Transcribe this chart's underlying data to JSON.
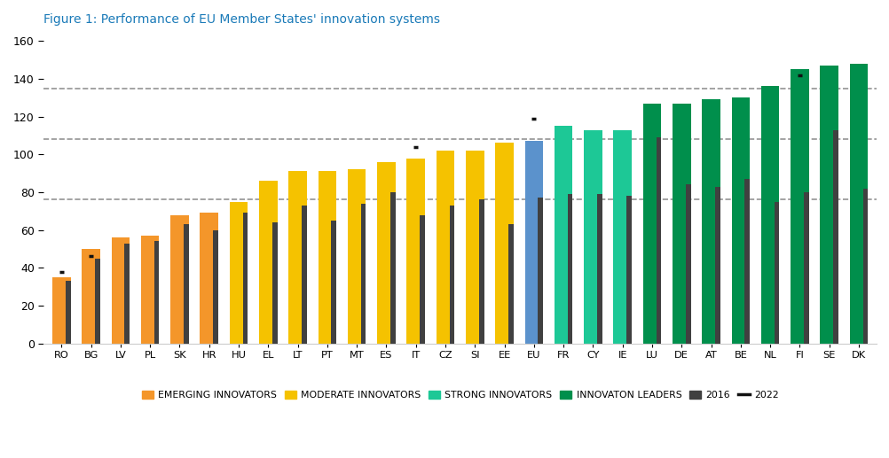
{
  "title": "Figure 1: Performance of EU Member States' innovation systems",
  "title_color": "#1a7ab8",
  "countries": [
    "RO",
    "BG",
    "LV",
    "PL",
    "SK",
    "HR",
    "HU",
    "EL",
    "LT",
    "PT",
    "MT",
    "ES",
    "IT",
    "CZ",
    "SI",
    "EE",
    "EU",
    "FR",
    "CY",
    "IE",
    "LU",
    "DE",
    "AT",
    "BE",
    "NL",
    "FI",
    "SE",
    "DK"
  ],
  "bar_values": [
    35,
    50,
    56,
    57,
    68,
    69,
    75,
    86,
    91,
    91,
    92,
    96,
    98,
    102,
    102,
    106,
    107,
    115,
    113,
    113,
    127,
    127,
    129,
    130,
    136,
    145,
    147,
    148
  ],
  "bar_2016": [
    33,
    45,
    53,
    54,
    63,
    60,
    69,
    64,
    73,
    65,
    74,
    80,
    68,
    73,
    76,
    63,
    77,
    79,
    79,
    78,
    109,
    84,
    83,
    87,
    75,
    80,
    113,
    82
  ],
  "bar_2022": [
    38,
    46,
    null,
    null,
    null,
    null,
    null,
    null,
    null,
    null,
    null,
    null,
    104,
    null,
    null,
    null,
    119,
    null,
    null,
    null,
    null,
    null,
    null,
    null,
    null,
    142,
    null,
    null
  ],
  "categories": {
    "EMERGING INNOVATORS": [
      "RO",
      "BG",
      "LV",
      "PL",
      "SK",
      "HR"
    ],
    "MODERATE INNOVATORS": [
      "HU",
      "EL",
      "LT",
      "PT",
      "MT",
      "ES",
      "IT",
      "CZ",
      "SI",
      "EE"
    ],
    "EU": [
      "EU"
    ],
    "STRONG INNOVATORS": [
      "FR",
      "CY",
      "IE"
    ],
    "INNOVATION LEADERS": [
      "LU",
      "DE",
      "AT",
      "BE",
      "NL",
      "FI",
      "SE",
      "DK"
    ]
  },
  "colors": {
    "EMERGING INNOVATORS": "#F4962A",
    "MODERATE INNOVATORS": "#F5C200",
    "EU": "#5B92CC",
    "STRONG INNOVATORS": "#1DC896",
    "INNOVATION LEADERS": "#008F4C",
    "2016": "#404040",
    "2022": "#111111"
  },
  "dashed_lines": [
    76,
    108,
    135
  ],
  "ylim": [
    0,
    163
  ],
  "yticks": [
    0,
    20,
    40,
    60,
    80,
    100,
    120,
    140,
    160
  ],
  "legend_labels": [
    "EMERGING INNOVATORS",
    "MODERATE INNOVATORS",
    "STRONG INNOVATORS",
    "INNOVATON LEADERS",
    "2016",
    "2022"
  ],
  "legend_colors": [
    "#F4962A",
    "#F5C200",
    "#1DC896",
    "#008F4C",
    "#404040",
    "#111111"
  ],
  "background_color": "#ffffff"
}
